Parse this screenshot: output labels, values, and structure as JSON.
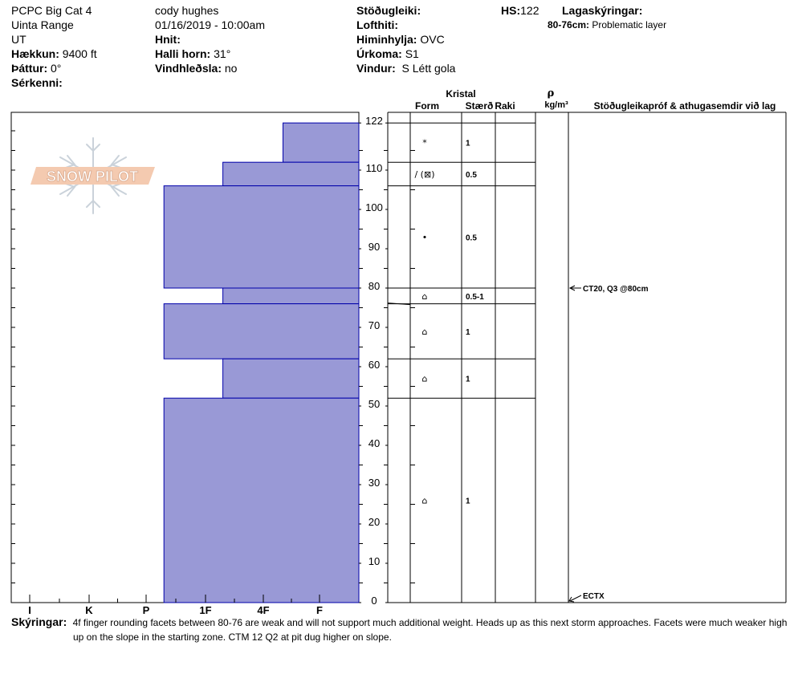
{
  "header": {
    "location": "PCPC Big Cat 4",
    "range": "Uinta Range",
    "state": "UT",
    "elevation_label": "Hækkun:",
    "elevation_value": "9400 ft",
    "aspect_label": "Þáttur:",
    "aspect_value": "0°",
    "features_label": "Sérkenni:",
    "observer": "cody hughes",
    "datetime": "01/16/2019 - 10:00am",
    "coords_label": "Hnit:",
    "slope_label": "Halli horn:",
    "slope_value": "31°",
    "wind_loading_label": "Vindhleðsla:",
    "wind_loading_value": "no",
    "stability_label": "Stöðugleiki:",
    "air_temp_label": "Lofthiti:",
    "sky_label": "Himinhylja:",
    "sky_value": "OVC",
    "precip_label": "Úrkoma:",
    "precip_value": "S1",
    "wind_label": "Vindur:",
    "wind_value": "S Létt gola",
    "hs_label": "HS:",
    "hs_value": "122",
    "legend_label": "Lagaskýringar:",
    "legend_layer_range": "80-76cm:",
    "legend_layer_text": "Problematic layer"
  },
  "logo": {
    "text": "SNOW PILOT"
  },
  "columns": {
    "crystal": "Kristal",
    "form": "Form",
    "size": "Stærð",
    "moisture": "Raki",
    "rho": "ρ",
    "density_unit": "kg/m³",
    "tests": "Stöðugleikapróf & athugasemdir við lag"
  },
  "comments": {
    "label": "Skýringar:",
    "line1": "4f finger rounding facets between 80-76 are weak and will not support much additional weight. Heads up as this next storm approaches. Facets were much weaker high",
    "line2": "up on the slope in the starting zone. CTM 12 Q2 at pit dug higher on slope."
  },
  "chart_data": {
    "type": "bar",
    "hardness_scale": [
      "I",
      "K",
      "P",
      "1F",
      "4F",
      "F"
    ],
    "y_axis": {
      "range": [
        0,
        122
      ],
      "ticks": [
        0,
        10,
        20,
        30,
        40,
        50,
        60,
        70,
        80,
        90,
        100,
        110,
        122
      ]
    },
    "layers": [
      {
        "top": 122,
        "bottom": 112,
        "hardness": "F+",
        "hardness_index": 0.65,
        "form": "*",
        "size": "1"
      },
      {
        "top": 112,
        "bottom": 106,
        "hardness": "4F",
        "hardness_index": 1.7,
        "form": "/ (⊠)",
        "size": "0.5"
      },
      {
        "top": 106,
        "bottom": 80,
        "hardness": "1F",
        "hardness_index": 2.7,
        "form": "•",
        "size": "0.5"
      },
      {
        "top": 80,
        "bottom": 76,
        "hardness": "4F",
        "hardness_index": 1.7,
        "form": "⌂",
        "size": "0.5-1"
      },
      {
        "top": 76,
        "bottom": 62,
        "hardness": "1F",
        "hardness_index": 2.7,
        "form": "⌂",
        "size": "1"
      },
      {
        "top": 62,
        "bottom": 52,
        "hardness": "4F",
        "hardness_index": 1.7,
        "form": "⌂",
        "size": "1"
      },
      {
        "top": 52,
        "bottom": 0,
        "hardness": "1F",
        "hardness_index": 2.7,
        "form": "⌂",
        "size": "1"
      }
    ],
    "tests": [
      {
        "depth": 80,
        "text": "CT20, Q3 @80cm"
      },
      {
        "depth": 0,
        "text": "ECTX"
      }
    ],
    "bar_color": "#9999d6",
    "bar_edge": "#0000aa"
  }
}
